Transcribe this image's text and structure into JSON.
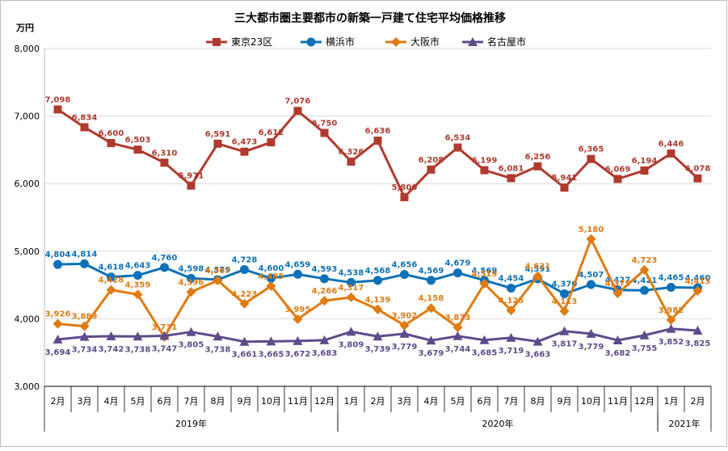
{
  "chart_data": {
    "type": "line",
    "title": "三大都市圏主要都市の新築一戸建て住宅平均価格推移",
    "ylabel": "万円",
    "ylim": [
      3000,
      8000
    ],
    "yticks": [
      "3,000",
      "4,000",
      "5,000",
      "6,000",
      "7,000",
      "8,000"
    ],
    "yticks_values": [
      3000,
      4000,
      5000,
      6000,
      7000,
      8000
    ],
    "grid": "horizontal",
    "legend": "top",
    "categories": [
      "2月",
      "3月",
      "4月",
      "5月",
      "6月",
      "7月",
      "8月",
      "9月",
      "10月",
      "11月",
      "12月",
      "1月",
      "2月",
      "3月",
      "4月",
      "5月",
      "6月",
      "7月",
      "8月",
      "9月",
      "10月",
      "11月",
      "12月",
      "1月",
      "2月"
    ],
    "year_groups": [
      {
        "label": "2019年",
        "start": 0,
        "end": 10
      },
      {
        "label": "2020年",
        "start": 11,
        "end": 22
      },
      {
        "label": "2021年",
        "start": 23,
        "end": 24
      }
    ],
    "series": [
      {
        "name": "東京23区",
        "color": "#b03a2e",
        "marker": "square",
        "label_position": "above",
        "values": [
          7098,
          6834,
          6600,
          6503,
          6310,
          5971,
          6591,
          6473,
          6612,
          7076,
          6750,
          6326,
          6636,
          5800,
          6208,
          6534,
          6199,
          6081,
          6256,
          5941,
          6365,
          6069,
          6194,
          6446,
          6078
        ],
        "labels": [
          "7,098",
          "6,834",
          "6,600",
          "6,503",
          "6,310",
          "5,971",
          "6,591",
          "6,473",
          "6,612",
          "7,076",
          "6,750",
          "6,326",
          "6,636",
          "5,800",
          "6,208",
          "6,534",
          "6,199",
          "6,081",
          "6,256",
          "5,941",
          "6,365",
          "6,069",
          "6,194",
          "6,446",
          "6,078"
        ]
      },
      {
        "name": "横浜市",
        "color": "#0c71b8",
        "marker": "circle",
        "label_position": "above",
        "values": [
          4804,
          4814,
          4618,
          4643,
          4760,
          4598,
          4579,
          4728,
          4600,
          4659,
          4593,
          4538,
          4568,
          4656,
          4569,
          4679,
          4569,
          4454,
          4591,
          4370,
          4507,
          4427,
          4421,
          4465,
          4460
        ],
        "labels": [
          "4,804",
          "4,814",
          "4,618",
          "4,643",
          "4,760",
          "4,598",
          "4,579",
          "4,728",
          "4,600",
          "4,659",
          "4,593",
          "4,538",
          "4,568",
          "4,656",
          "4,569",
          "4,679",
          "4,569",
          "4,454",
          "4,591",
          "4,370",
          "4,507",
          "4,427",
          "4,421",
          "4,465",
          "4,460"
        ]
      },
      {
        "name": "大阪市",
        "color": "#e07b10",
        "marker": "diamond",
        "label_position": "above",
        "values": [
          3926,
          3889,
          4428,
          4359,
          3731,
          4396,
          4567,
          4223,
          4485,
          3995,
          4266,
          4317,
          4139,
          3902,
          4158,
          3873,
          4519,
          4125,
          4631,
          4113,
          5180,
          4375,
          4723,
          3982,
          4413
        ],
        "labels": [
          "3,926",
          "3,889",
          "4,428",
          "4,359",
          "3,731",
          "4,396",
          "4,567",
          "4,223",
          "4,485",
          "3,995",
          "4,266",
          "4,317",
          "4,139",
          "3,902",
          "4,158",
          "3,873",
          "4,519",
          "4,125",
          "4,631",
          "4,113",
          "5,180",
          "4,375",
          "4,723",
          "3,982",
          "4,413"
        ]
      },
      {
        "name": "名古屋市",
        "color": "#5e4b8b",
        "marker": "triangle",
        "label_position": "below",
        "values": [
          3694,
          3734,
          3742,
          3738,
          3747,
          3805,
          3738,
          3661,
          3665,
          3672,
          3683,
          3809,
          3739,
          3779,
          3679,
          3744,
          3685,
          3719,
          3663,
          3817,
          3779,
          3682,
          3755,
          3852,
          3825
        ],
        "labels": [
          "3,694",
          "3,734",
          "3,742",
          "3,738",
          "3,747",
          "3,805",
          "3,738",
          "3,661",
          "3,665",
          "3,672",
          "3,683",
          "3,809",
          "3,739",
          "3,779",
          "3,679",
          "3,744",
          "3,685",
          "3,719",
          "3,663",
          "3,817",
          "3,779",
          "3,682",
          "3,755",
          "3,852",
          "3,825"
        ]
      }
    ]
  }
}
